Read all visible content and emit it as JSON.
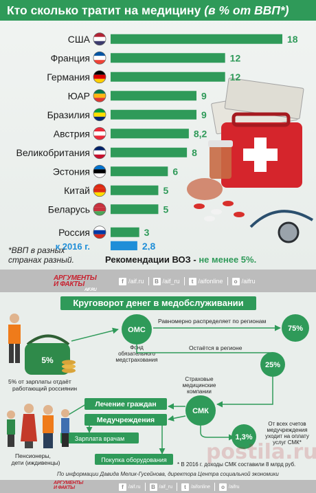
{
  "title": {
    "main": "Кто сколько тратит на медицину",
    "sub": "(в % от ВВП*)"
  },
  "chart_data": {
    "type": "bar",
    "title": "Кто сколько тратит на медицину (в % от ВВП*)",
    "categories": [
      "США",
      "Франция",
      "Германия",
      "ЮАР",
      "Бразилия",
      "Австрия",
      "Великобритания",
      "Эстония",
      "Китай",
      "Беларусь",
      "Россия"
    ],
    "values": [
      18,
      12,
      12,
      9,
      9,
      8.2,
      8,
      6,
      5,
      5,
      3
    ],
    "value_labels": [
      "18",
      "12",
      "12",
      "9",
      "9",
      "8,2",
      "8",
      "6",
      "5",
      "5",
      "3"
    ],
    "extra": {
      "category": "к 2016 г.",
      "value": 2.8,
      "value_label": "2,8",
      "color": "#1f8ed8"
    },
    "bar_color": "#2f9a59",
    "xlim": [
      0,
      18
    ]
  },
  "footnote": [
    "*ВВП в разных",
    "странах разный."
  ],
  "who": {
    "prefix": "Рекомендации ВОЗ - ",
    "highlight": "не менее 5%."
  },
  "brand": {
    "line1": "АРГУМЕНТЫ",
    "line2": "И ФАКТЫ",
    "site": "AIF.RU"
  },
  "social": [
    "/aif.ru",
    "/aif_ru",
    "/aifonline",
    "/aifru"
  ],
  "flow": {
    "title": "Круговорот денег в медобслуживании",
    "wallet_percent": "5%",
    "salary_note": [
      "5% от зарплаты отдаёт",
      "работающий россиянин"
    ],
    "oms": "ОМС",
    "oms_caption": [
      "Фонд",
      "обязательного",
      "медстрахования"
    ],
    "distribute": "Равномерно распределяет по регионам",
    "pct75": "75%",
    "stays": "Остаётся в регионе",
    "pct25": "25%",
    "smk_caption": [
      "Страховые",
      "медицинские",
      "компании"
    ],
    "smk": "СМК",
    "treatment": "Лечение граждан",
    "institutions": "Медучреждения",
    "salary": "Зарплата врачам",
    "equipment": "Покупка оборудования",
    "pct13": "1,3%",
    "note13": [
      "От всех счетов",
      "медучреждения",
      "уходит на оплату",
      "услуг СМК*"
    ],
    "pensioners": [
      "Пенсионеры,",
      "дети (иждивенцы)"
    ],
    "bottom_note": "* В 2016 г. доходы СМК составили 8 млрд руб.",
    "credit": "По информации Давида Мелик-Гусейнова, директора Центра социальной экономики"
  },
  "watermark": "postila.ru",
  "colors": {
    "green": "#2f9a59",
    "blue": "#1f8ed8",
    "gray": "#bcbcbc"
  }
}
